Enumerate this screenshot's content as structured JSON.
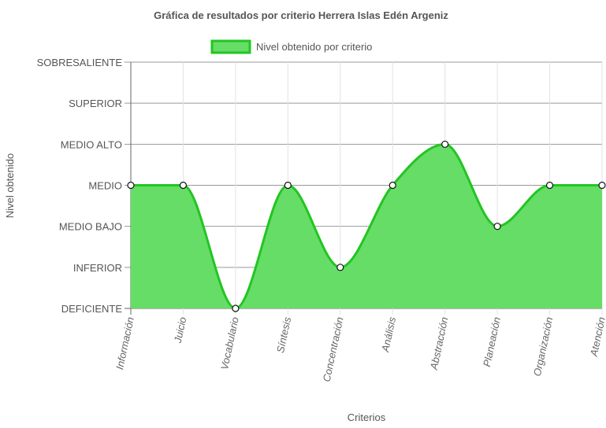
{
  "chart_data": {
    "type": "area",
    "title": "Gráfica de resultados por criterio Herrera Islas Edén Argeniz",
    "xlabel": "Criterios",
    "ylabel": "Nivel obtenido",
    "levels": [
      "DEFICIENTE",
      "INFERIOR",
      "MEDIO BAJO",
      "MEDIO",
      "MEDIO ALTO",
      "SUPERIOR",
      "SOBRESALIENTE"
    ],
    "categories": [
      "Información",
      "Juicio",
      "Vocabulario",
      "Síntesis",
      "Concentración",
      "Análisis",
      "Abstracción",
      "Planeación",
      "Organización",
      "Atención"
    ],
    "series": [
      {
        "name": "Nivel obtenido por criterio",
        "values": [
          "MEDIO",
          "MEDIO",
          "DEFICIENTE",
          "MEDIO",
          "INFERIOR",
          "MEDIO",
          "MEDIO ALTO",
          "MEDIO BAJO",
          "MEDIO",
          "MEDIO"
        ]
      }
    ],
    "colors": {
      "fill": "#66dd66",
      "stroke": "#22c522",
      "point_fill": "#ffffff",
      "point_stroke": "#111111"
    },
    "grid": true,
    "legend_position": "top"
  }
}
